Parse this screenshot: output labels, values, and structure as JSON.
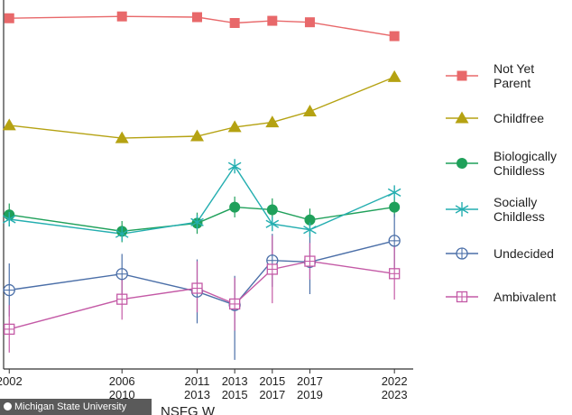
{
  "credit": "Michigan State University",
  "source_label": "NSFG W",
  "colors": {
    "not_yet_parent": "#e8686a",
    "childfree": "#b5a212",
    "biologically_childless": "#1fa05a",
    "socially_childless": "#24aeb0",
    "undecided": "#4b6fa8",
    "ambivalent": "#c45aa6",
    "axis": "#333333"
  },
  "chart_data": {
    "type": "line",
    "title": "",
    "xlabel": "",
    "ylabel": "",
    "x_ticks": [
      {
        "x": 2002,
        "lines": [
          "2002"
        ]
      },
      {
        "x": 2008,
        "lines": [
          "2006",
          "2010"
        ]
      },
      {
        "x": 2012,
        "lines": [
          "2011",
          "2013"
        ]
      },
      {
        "x": 2014,
        "lines": [
          "2013",
          "2015"
        ]
      },
      {
        "x": 2016,
        "lines": [
          "2015",
          "2017"
        ]
      },
      {
        "x": 2018,
        "lines": [
          "2017",
          "2019"
        ]
      },
      {
        "x": 2022.5,
        "lines": [
          "2022",
          "2023"
        ]
      }
    ],
    "x": [
      2002,
      2008,
      2012,
      2014,
      2016,
      2018,
      2022.5
    ],
    "xlim": [
      2001.7,
      2023.5
    ],
    "ylim": [
      0,
      100
    ],
    "y_ticks_shown": false,
    "grid": false,
    "legend_position": "right",
    "series": [
      {
        "name": "Not Yet Parent",
        "key": "not_yet_parent",
        "marker": "square",
        "values": [
          95.5,
          96.0,
          95.8,
          94.2,
          94.8,
          94.4,
          90.6
        ]
      },
      {
        "name": "Childfree",
        "key": "childfree",
        "marker": "triangle",
        "values": [
          66.2,
          62.7,
          63.2,
          65.7,
          67.0,
          70.0,
          79.4
        ]
      },
      {
        "name": "Biologically Childless",
        "key": "biologically_childless",
        "marker": "circle",
        "values": [
          41.7,
          37.2,
          39.4,
          43.8,
          43.1,
          40.3,
          43.8
        ],
        "error": [
          [
            38.5,
            44.8
          ],
          [
            34.2,
            40.0
          ],
          [
            36.5,
            42.3
          ],
          [
            41.0,
            46.7
          ],
          [
            40.0,
            46.2
          ],
          [
            37.3,
            43.4
          ],
          [
            41.1,
            46.6
          ]
        ]
      },
      {
        "name": "Socially Childless",
        "key": "socially_childless",
        "marker": "asterisk",
        "values": [
          40.5,
          36.5,
          39.7,
          55.0,
          39.2,
          37.6,
          47.8
        ]
      },
      {
        "name": "Undecided",
        "key": "undecided",
        "marker": "circle-plus",
        "values": [
          21.1,
          25.5,
          20.7,
          17.0,
          29.2,
          28.8,
          34.6
        ],
        "error": [
          [
            13.9,
            28.4
          ],
          [
            20.0,
            31.0
          ],
          [
            12.0,
            29.5
          ],
          [
            2.0,
            25.0
          ],
          [
            22.0,
            36.5
          ],
          [
            20.0,
            37.0
          ],
          [
            27.0,
            42.0
          ]
        ]
      },
      {
        "name": "Ambivalent",
        "key": "ambivalent",
        "marker": "square-plus",
        "values": [
          10.4,
          18.6,
          21.6,
          17.3,
          26.8,
          29.0,
          25.6
        ],
        "error": [
          [
            4.0,
            17.0
          ],
          [
            13.0,
            24.0
          ],
          [
            15.0,
            29.0
          ],
          [
            10.0,
            24.5
          ],
          [
            17.5,
            36.0
          ],
          [
            24.0,
            34.0
          ],
          [
            18.5,
            33.0
          ]
        ]
      }
    ]
  }
}
